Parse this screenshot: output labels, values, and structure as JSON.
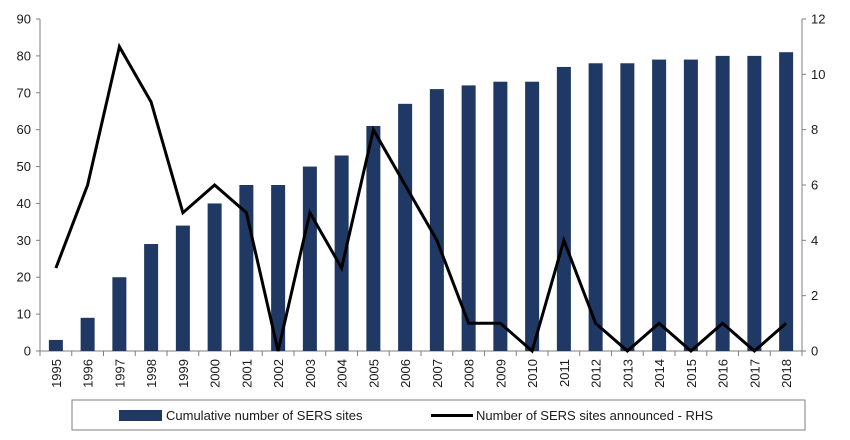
{
  "chart_data": {
    "type": "bar",
    "categories": [
      "1995",
      "1996",
      "1997",
      "1998",
      "1999",
      "2000",
      "2001",
      "2002",
      "2003",
      "2004",
      "2005",
      "2006",
      "2007",
      "2008",
      "2009",
      "2010",
      "2011",
      "2012",
      "2013",
      "2014",
      "2015",
      "2016",
      "2017",
      "2018"
    ],
    "series": [
      {
        "name": "Cumulative number of SERS sites",
        "type": "bar",
        "axis": "left",
        "color": "#1f3864",
        "values": [
          3,
          9,
          20,
          29,
          34,
          40,
          45,
          45,
          50,
          53,
          61,
          67,
          71,
          72,
          73,
          73,
          77,
          78,
          78,
          79,
          79,
          80,
          80,
          81
        ]
      },
      {
        "name": "Number of SERS sites announced - RHS",
        "type": "line",
        "axis": "right",
        "color": "#000000",
        "values": [
          3,
          6,
          11,
          9,
          5,
          6,
          5,
          0,
          5,
          3,
          8,
          6,
          4,
          1,
          1,
          0,
          4,
          1,
          0,
          1,
          0,
          1,
          0,
          1
        ]
      }
    ],
    "left_axis": {
      "ylim": [
        0,
        90
      ],
      "ticks": [
        "0",
        "10",
        "20",
        "30",
        "40",
        "50",
        "60",
        "70",
        "80",
        "90"
      ]
    },
    "right_axis": {
      "ylim": [
        0,
        12
      ],
      "ticks": [
        "0",
        "2",
        "4",
        "6",
        "8",
        "10",
        "12"
      ]
    },
    "grid": false,
    "legend": "bottom",
    "title": "",
    "xlabel": "",
    "ylabel": ""
  }
}
